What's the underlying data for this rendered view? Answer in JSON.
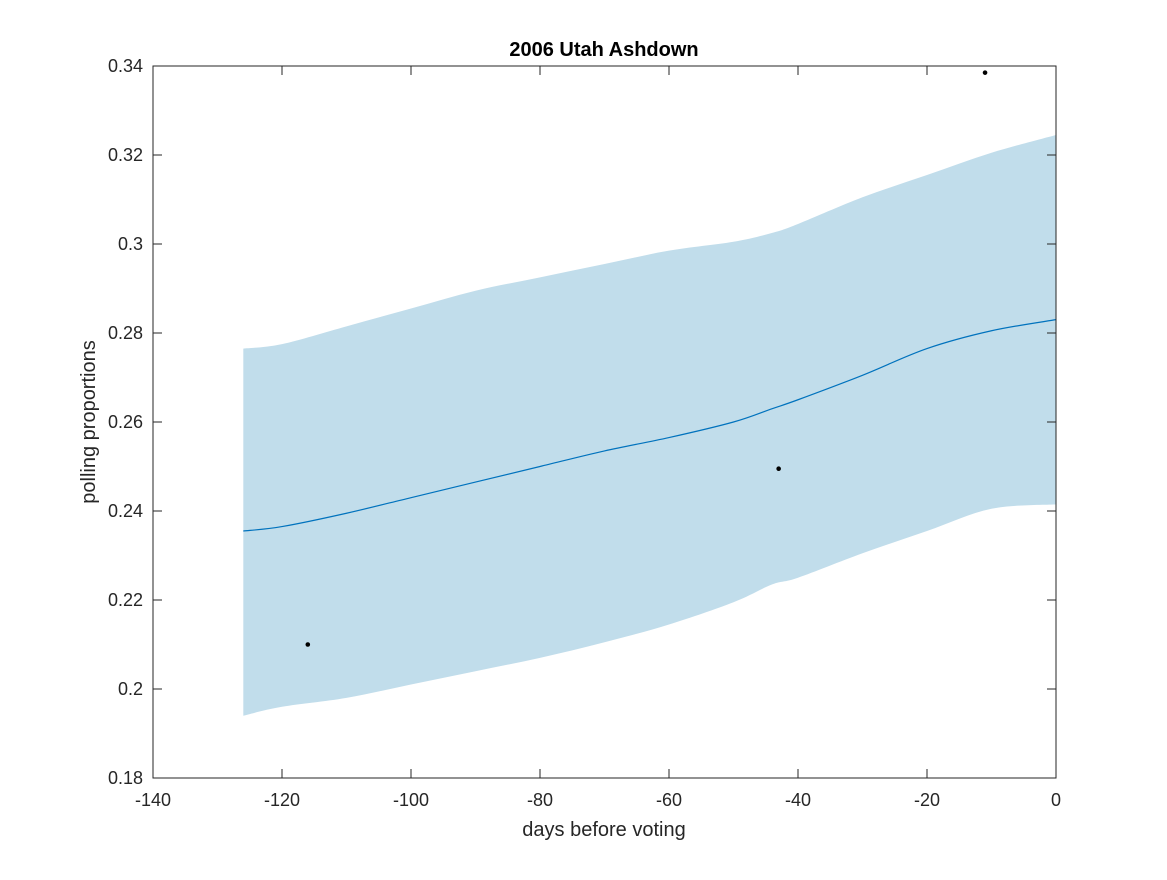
{
  "chart_data": {
    "type": "line",
    "title": "2006 Utah Ashdown",
    "xlabel": "days before voting",
    "ylabel": "polling proportions",
    "xlim": [
      -140,
      0
    ],
    "ylim": [
      0.18,
      0.34
    ],
    "xticks": [
      -140,
      -120,
      -100,
      -80,
      -60,
      -40,
      -20,
      0
    ],
    "xtick_labels": [
      "-140",
      "-120",
      "-100",
      "-80",
      "-60",
      "-40",
      "-20",
      "0"
    ],
    "yticks": [
      0.18,
      0.2,
      0.22,
      0.24,
      0.26,
      0.28,
      0.3,
      0.32,
      0.34
    ],
    "ytick_labels": [
      "0.18",
      "0.2",
      "0.22",
      "0.24",
      "0.26",
      "0.28",
      "0.3",
      "0.32",
      "0.34"
    ],
    "grid": false,
    "colors": {
      "band": "#c1ddeb",
      "line": "#0072bd",
      "points": "#000000",
      "axes": "#262626"
    },
    "series": [
      {
        "kind": "band",
        "x": [
          -126,
          -120,
          -110,
          -100,
          -90,
          -80,
          -70,
          -60,
          -50,
          -44,
          -40,
          -30,
          -20,
          -10,
          0
        ],
        "lower": [
          0.194,
          0.196,
          0.198,
          0.201,
          0.204,
          0.207,
          0.2105,
          0.2145,
          0.2195,
          0.2235,
          0.225,
          0.2305,
          0.2355,
          0.2405,
          0.2415
        ],
        "upper": [
          0.2765,
          0.2775,
          0.2815,
          0.2855,
          0.2895,
          0.2925,
          0.2955,
          0.2985,
          0.3005,
          0.3025,
          0.3045,
          0.3105,
          0.3155,
          0.3205,
          0.3245
        ]
      },
      {
        "kind": "line",
        "x": [
          -126,
          -120,
          -110,
          -100,
          -90,
          -80,
          -70,
          -60,
          -50,
          -44,
          -40,
          -30,
          -20,
          -10,
          0
        ],
        "y": [
          0.2355,
          0.2365,
          0.2395,
          0.243,
          0.2465,
          0.25,
          0.2535,
          0.2565,
          0.26,
          0.263,
          0.265,
          0.2705,
          0.2765,
          0.2805,
          0.283
        ]
      },
      {
        "kind": "scatter",
        "x": [
          -116,
          -43,
          -11
        ],
        "y": [
          0.21,
          0.2495,
          0.3385
        ]
      }
    ]
  }
}
